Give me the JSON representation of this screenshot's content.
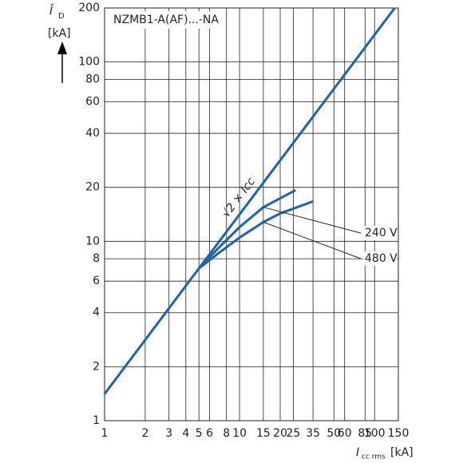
{
  "chart_data": {
    "type": "line",
    "title": "NZMB1-A(AF)...-NA",
    "y_label": {
      "symbol": "Î",
      "subscript": "D",
      "unit": "[kA]"
    },
    "x_label": {
      "symbol": "I",
      "subscript": "cc rms",
      "unit": "[kA]"
    },
    "log_x": true,
    "log_y": true,
    "grid": true,
    "xlim": [
      1,
      150
    ],
    "ylim": [
      1,
      200
    ],
    "xticks": [
      1,
      2,
      3,
      4,
      5,
      6,
      8,
      10,
      15,
      20,
      25,
      35,
      50,
      60,
      85,
      100,
      150
    ],
    "yticks": [
      1,
      2,
      4,
      6,
      8,
      10,
      20,
      40,
      60,
      80,
      100,
      200
    ],
    "series": [
      {
        "name": "√2 × Icc",
        "color": "#1f63a8",
        "x": [
          1,
          141
        ],
        "values": [
          1.41,
          200
        ]
      },
      {
        "name": "240 V",
        "color": "#1f63a8",
        "x": [
          5,
          7,
          10,
          15,
          26
        ],
        "values": [
          7.07,
          9.2,
          12,
          15.5,
          19.3
        ]
      },
      {
        "name": "480 V",
        "color": "#1f63a8",
        "x": [
          5,
          7,
          10,
          15,
          20,
          35
        ],
        "values": [
          7.07,
          8.6,
          10.5,
          12.8,
          14.3,
          16.7
        ]
      }
    ]
  }
}
